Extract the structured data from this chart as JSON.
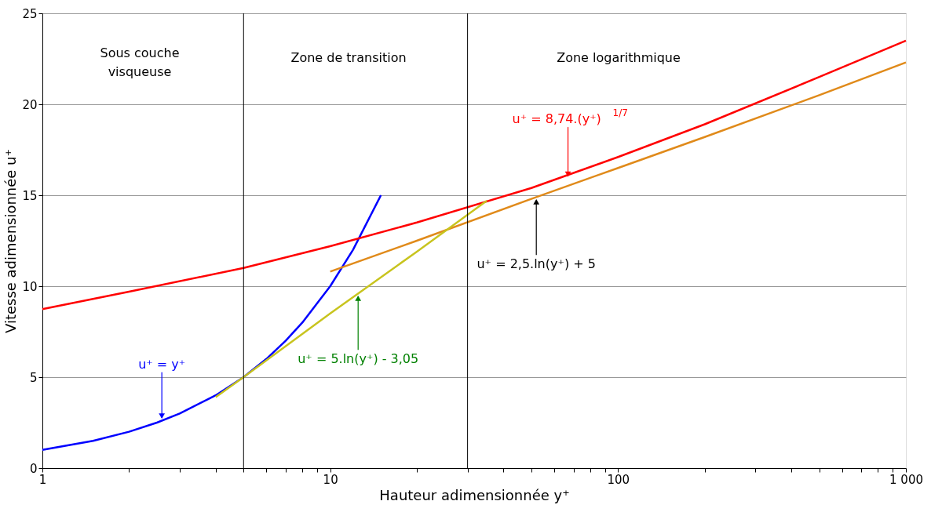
{
  "chart_data": {
    "type": "line",
    "xlabel": "Hauteur adimensionnée y⁺",
    "ylabel": "Vitesse adimensionnée u⁺",
    "log": "x",
    "xlim": [
      1,
      1000
    ],
    "ylim": [
      0,
      25
    ],
    "xticks": [
      1,
      {
        "value": 2,
        "label": null
      },
      {
        "value": 3,
        "label": null
      },
      {
        "value": 4,
        "label": null
      },
      {
        "value": 5,
        "label": null
      },
      {
        "value": 6,
        "label": null
      },
      {
        "value": 7,
        "label": null
      },
      {
        "value": 8,
        "label": null
      },
      {
        "value": 9,
        "label": null
      },
      10,
      {
        "value": 20,
        "label": null
      },
      {
        "value": 30,
        "label": null
      },
      {
        "value": 40,
        "label": null
      },
      {
        "value": 50,
        "label": null
      },
      {
        "value": 60,
        "label": null
      },
      {
        "value": 70,
        "label": null
      },
      {
        "value": 80,
        "label": null
      },
      {
        "value": 90,
        "label": null
      },
      100,
      {
        "value": 200,
        "label": null
      },
      {
        "value": 300,
        "label": null
      },
      {
        "value": 400,
        "label": null
      },
      {
        "value": 500,
        "label": null
      },
      {
        "value": 600,
        "label": null
      },
      {
        "value": 700,
        "label": null
      },
      {
        "value": 800,
        "label": null
      },
      {
        "value": 900,
        "label": null
      },
      {
        "value": 1000,
        "label": "1 000"
      }
    ],
    "yticks": [
      0,
      5,
      10,
      15,
      20,
      25
    ],
    "grid": "y",
    "legend": false,
    "marker": "none",
    "line_style": "solid",
    "series": [
      {
        "color": "#0000ff",
        "x": [
          1,
          1.5,
          2,
          2.5,
          3,
          4,
          5,
          6,
          7,
          8,
          10,
          12,
          15
        ],
        "values": [
          1,
          1.5,
          2,
          2.5,
          3,
          4,
          5,
          6,
          7,
          8,
          10,
          12,
          15
        ]
      },
      {
        "color": "#ff0000",
        "x": [
          1,
          2,
          5,
          10,
          20,
          50,
          100,
          200,
          500,
          1000
        ],
        "values": [
          8.74,
          9.7,
          11.0,
          12.2,
          13.5,
          15.4,
          17.1,
          18.9,
          21.5,
          23.5
        ]
      },
      {
        "color": "#e08a1a",
        "x": [
          10,
          20,
          50,
          100,
          200,
          500,
          1000
        ],
        "values": [
          10.8,
          12.5,
          14.8,
          16.5,
          18.2,
          20.5,
          22.3
        ]
      },
      {
        "color": "#c8c41e",
        "x": [
          4,
          5,
          10,
          20,
          35
        ],
        "values": [
          3.9,
          5.0,
          8.5,
          11.9,
          14.7
        ]
      }
    ],
    "ref_lines": [
      {
        "axis": "x",
        "value": 5,
        "color": "#000000"
      },
      {
        "axis": "x",
        "value": 30,
        "color": "#000000"
      }
    ],
    "annotations": [
      "Sous couche\nvisqueuse",
      "Zone de transition",
      "Zone logarithmique",
      {
        "text": "u⁺ = y⁺",
        "x": 2.6,
        "y": 2.6
      },
      {
        "text": "u⁺ = 8,74.(y⁺)$^{1/7}$",
        "x": 67,
        "y": 15.9
      },
      {
        "text": "u⁺ = 2,5.ln(y⁺) + 5",
        "x": 52,
        "y": 14.9
      },
      {
        "text": "u⁺ = 5.ln(y⁺) - 3,05",
        "x": 12.5,
        "y": 9.6
      }
    ]
  }
}
